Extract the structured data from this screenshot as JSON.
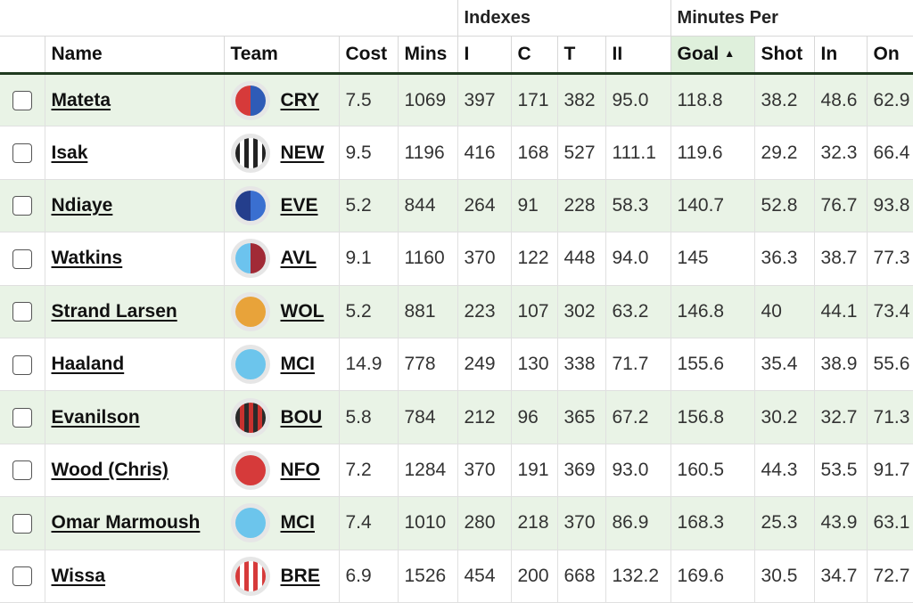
{
  "group_headers": {
    "indexes": "Indexes",
    "minutes_per": "Minutes Per"
  },
  "columns": {
    "name": "Name",
    "team": "Team",
    "cost": "Cost",
    "mins": "Mins",
    "i": "I",
    "c": "C",
    "t": "T",
    "ii": "II",
    "goal": "Goal",
    "shot": "Shot",
    "in": "In",
    "on": "On"
  },
  "sort": {
    "column": "Goal",
    "direction": "ascending",
    "icon": "sort-ascending-icon"
  },
  "rows": [
    {
      "name": "Mateta",
      "team": "CRY",
      "cost": "7.5",
      "mins": "1069",
      "i": "397",
      "c": "171",
      "t": "382",
      "ii": "95.0",
      "goal": "118.8",
      "shot": "38.2",
      "in": "48.6",
      "on": "62.9",
      "badge": {
        "type": "split",
        "colors": [
          "#d63a3a",
          "#2f5bb7"
        ]
      }
    },
    {
      "name": "Isak",
      "team": "NEW",
      "cost": "9.5",
      "mins": "1196",
      "i": "416",
      "c": "168",
      "t": "527",
      "ii": "111.1",
      "goal": "119.6",
      "shot": "29.2",
      "in": "32.3",
      "on": "66.4",
      "badge": {
        "type": "stripes",
        "colors": [
          "#222222",
          "#ffffff"
        ]
      }
    },
    {
      "name": "Ndiaye",
      "team": "EVE",
      "cost": "5.2",
      "mins": "844",
      "i": "264",
      "c": "91",
      "t": "228",
      "ii": "58.3",
      "goal": "140.7",
      "shot": "52.8",
      "in": "76.7",
      "on": "93.8",
      "badge": {
        "type": "split",
        "colors": [
          "#243e8c",
          "#3a6fd0"
        ]
      }
    },
    {
      "name": "Watkins",
      "team": "AVL",
      "cost": "9.1",
      "mins": "1160",
      "i": "370",
      "c": "122",
      "t": "448",
      "ii": "94.0",
      "goal": "145",
      "shot": "36.3",
      "in": "38.7",
      "on": "77.3",
      "badge": {
        "type": "split",
        "colors": [
          "#6cc3ee",
          "#a12a36"
        ]
      }
    },
    {
      "name": "Strand Larsen",
      "team": "WOL",
      "cost": "5.2",
      "mins": "881",
      "i": "223",
      "c": "107",
      "t": "302",
      "ii": "63.2",
      "goal": "146.8",
      "shot": "40",
      "in": "44.1",
      "on": "73.4",
      "badge": {
        "type": "solid",
        "colors": [
          "#e8a33a"
        ]
      }
    },
    {
      "name": "Haaland",
      "team": "MCI",
      "cost": "14.9",
      "mins": "778",
      "i": "249",
      "c": "130",
      "t": "338",
      "ii": "71.7",
      "goal": "155.6",
      "shot": "35.4",
      "in": "38.9",
      "on": "55.6",
      "badge": {
        "type": "solid",
        "colors": [
          "#6cc5ec"
        ]
      }
    },
    {
      "name": "Evanilson",
      "team": "BOU",
      "cost": "5.8",
      "mins": "784",
      "i": "212",
      "c": "96",
      "t": "365",
      "ii": "67.2",
      "goal": "156.8",
      "shot": "30.2",
      "in": "32.7",
      "on": "71.3",
      "badge": {
        "type": "stripes",
        "colors": [
          "#2a2a2a",
          "#c8322f"
        ]
      }
    },
    {
      "name": "Wood (Chris)",
      "team": "NFO",
      "cost": "7.2",
      "mins": "1284",
      "i": "370",
      "c": "191",
      "t": "369",
      "ii": "93.0",
      "goal": "160.5",
      "shot": "44.3",
      "in": "53.5",
      "on": "91.7",
      "badge": {
        "type": "solid",
        "colors": [
          "#d63a3a"
        ]
      }
    },
    {
      "name": "Omar Marmoush",
      "team": "MCI",
      "cost": "7.4",
      "mins": "1010",
      "i": "280",
      "c": "218",
      "t": "370",
      "ii": "86.9",
      "goal": "168.3",
      "shot": "25.3",
      "in": "43.9",
      "on": "63.1",
      "badge": {
        "type": "solid",
        "colors": [
          "#6cc5ec"
        ]
      }
    },
    {
      "name": "Wissa",
      "team": "BRE",
      "cost": "6.9",
      "mins": "1526",
      "i": "454",
      "c": "200",
      "t": "668",
      "ii": "132.2",
      "goal": "169.6",
      "shot": "30.5",
      "in": "34.7",
      "on": "72.7",
      "badge": {
        "type": "stripes",
        "colors": [
          "#d63a3a",
          "#ffffff"
        ]
      }
    }
  ]
}
